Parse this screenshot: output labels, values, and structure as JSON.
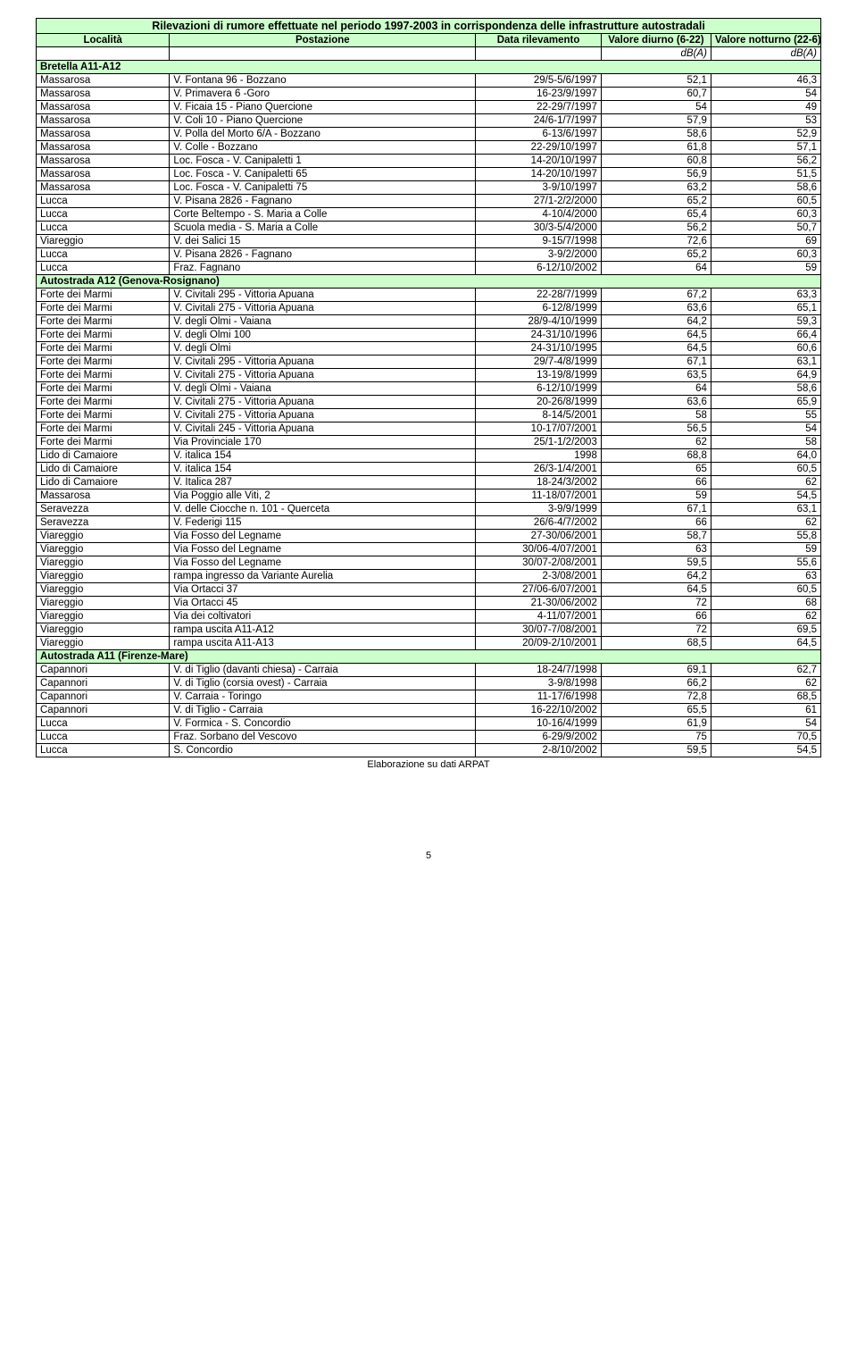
{
  "title": "Rilevazioni di rumore effettuate nel periodo 1997-2003 in corrispondenza delle infrastrutture autostradali",
  "headers": {
    "localita": "Località",
    "postazione": "Postazione",
    "data": "Data rilevamento",
    "diurno": "Valore diurno (6-22)",
    "notturno": "Valore notturno (22-6)"
  },
  "units": {
    "day": "dB(A)",
    "night": "dB(A)"
  },
  "footer": "Elaborazione su dati ARPAT",
  "page": "5",
  "colors": {
    "section_bg": "#ccffcc",
    "border": "#000000",
    "text": "#000000",
    "background": "#ffffff"
  },
  "sections": [
    {
      "name": "Bretella A11-A12",
      "rows": [
        [
          "Massarosa",
          "V. Fontana 96 - Bozzano",
          "29/5-5/6/1997",
          "52,1",
          "46,3"
        ],
        [
          "Massarosa",
          "V. Primavera 6 -Goro",
          "16-23/9/1997",
          "60,7",
          "54"
        ],
        [
          "Massarosa",
          "V. Ficaia 15 - Piano Quercione",
          "22-29/7/1997",
          "54",
          "49"
        ],
        [
          "Massarosa",
          "V. Coli 10 - Piano Quercione",
          "24/6-1/7/1997",
          "57,9",
          "53"
        ],
        [
          "Massarosa",
          "V. Polla del Morto 6/A - Bozzano",
          "6-13/6/1997",
          "58,6",
          "52,9"
        ],
        [
          "Massarosa",
          "V. Colle - Bozzano",
          "22-29/10/1997",
          "61,8",
          "57,1"
        ],
        [
          "Massarosa",
          "Loc. Fosca - V. Canipaletti 1",
          "14-20/10/1997",
          "60,8",
          "56,2"
        ],
        [
          "Massarosa",
          "Loc. Fosca - V. Canipaletti 65",
          "14-20/10/1997",
          "56,9",
          "51,5"
        ],
        [
          "Massarosa",
          "Loc. Fosca - V. Canipaletti 75",
          "3-9/10/1997",
          "63,2",
          "58,6"
        ],
        [
          "Lucca",
          "V. Pisana 2826 - Fagnano",
          "27/1-2/2/2000",
          "65,2",
          "60,5"
        ],
        [
          "Lucca",
          "Corte Beltempo - S. Maria a Colle",
          "4-10/4/2000",
          "65,4",
          "60,3"
        ],
        [
          "Lucca",
          "Scuola media - S. Maria a Colle",
          "30/3-5/4/2000",
          "56,2",
          "50,7"
        ],
        [
          "Viareggio",
          "V. dei Salici 15",
          "9-15/7/1998",
          "72,6",
          "69"
        ],
        [
          "Lucca",
          "V. Pisana 2826 - Fagnano",
          "3-9/2/2000",
          "65,2",
          "60,3"
        ],
        [
          "Lucca",
          "Fraz. Fagnano",
          "6-12/10/2002",
          "64",
          "59"
        ]
      ]
    },
    {
      "name": "Autostrada A12 (Genova-Rosignano)",
      "rows": [
        [
          "Forte dei Marmi",
          "V. Civitali 295 - Vittoria Apuana",
          "22-28/7/1999",
          "67,2",
          "63,3"
        ],
        [
          "Forte dei Marmi",
          "V. Civitali 275 - Vittoria Apuana",
          "6-12/8/1999",
          "63,6",
          "65,1"
        ],
        [
          "Forte dei Marmi",
          "V. degli Olmi - Vaiana",
          "28/9-4/10/1999",
          "64,2",
          "59,3"
        ],
        [
          "Forte dei Marmi",
          "V. degli Olmi 100",
          "24-31/10/1996",
          "64,5",
          "66,4"
        ],
        [
          "Forte dei Marmi",
          "V. degli Olmi",
          "24-31/10/1995",
          "64,5",
          "60,6"
        ],
        [
          "Forte dei Marmi",
          "V. Civitali 295 - Vittoria Apuana",
          "29/7-4/8/1999",
          "67,1",
          "63,1"
        ],
        [
          "Forte dei Marmi",
          "V. Civitali 275 - Vittoria Apuana",
          "13-19/8/1999",
          "63,5",
          "64,9"
        ],
        [
          "Forte dei Marmi",
          "V. degli Olmi - Vaiana",
          "6-12/10/1999",
          "64",
          "58,6"
        ],
        [
          "Forte dei Marmi",
          "V. Civitali 275 - Vittoria Apuana",
          "20-26/8/1999",
          "63,6",
          "65,9"
        ],
        [
          "Forte dei Marmi",
          "V. Civitali 275 - Vittoria Apuana",
          "8-14/5/2001",
          "58",
          "55"
        ],
        [
          "Forte dei Marmi",
          "V. Civitali 245 - Vittoria Apuana",
          "10-17/07/2001",
          "56,5",
          "54"
        ],
        [
          "Forte dei Marmi",
          "Via Provinciale 170",
          "25/1-1/2/2003",
          "62",
          "58"
        ],
        [
          "Lido di Camaiore",
          "V. italica 154",
          "1998",
          "68,8",
          "64,0"
        ],
        [
          "Lido di Camaiore",
          "V. italica 154",
          "26/3-1/4/2001",
          "65",
          "60,5"
        ],
        [
          "Lido di Camaiore",
          "V. Italica 287",
          "18-24/3/2002",
          "66",
          "62"
        ],
        [
          "Massarosa",
          "Via Poggio alle Viti, 2",
          "11-18/07/2001",
          "59",
          "54,5"
        ],
        [
          "Seravezza",
          "V. delle Ciocche n. 101 - Querceta",
          "3-9/9/1999",
          "67,1",
          "63,1"
        ],
        [
          "Seravezza",
          "V. Federigi 115",
          "26/6-4/7/2002",
          "66",
          "62"
        ],
        [
          "Viareggio",
          "Via Fosso del Legname",
          "27-30/06/2001",
          "58,7",
          "55,8"
        ],
        [
          "Viareggio",
          "Via Fosso del Legname",
          "30/06-4/07/2001",
          "63",
          "59"
        ],
        [
          "Viareggio",
          "Via Fosso del Legname",
          "30/07-2/08/2001",
          "59,5",
          "55,6"
        ],
        [
          "Viareggio",
          "rampa ingresso da Variante Aurelia",
          "2-3/08/2001",
          "64,2",
          "63"
        ],
        [
          "Viareggio",
          "Via Ortacci 37",
          "27/06-6/07/2001",
          "64,5",
          "60,5"
        ],
        [
          "Viareggio",
          "Via Ortacci 45",
          "21-30/06/2002",
          "72",
          "68"
        ],
        [
          "Viareggio",
          "Via dei coltivatori",
          "4-11/07/2001",
          "66",
          "62"
        ],
        [
          "Viareggio",
          "rampa uscita A11-A12",
          "30/07-7/08/2001",
          "72",
          "69,5"
        ],
        [
          "Viareggio",
          "rampa uscita A11-A13",
          "20/09-2/10/2001",
          "68,5",
          "64,5"
        ]
      ]
    },
    {
      "name": "Autostrada A11 (Firenze-Mare)",
      "rows": [
        [
          "Capannori",
          "V. di Tiglio (davanti chiesa) - Carraia",
          "18-24/7/1998",
          "69,1",
          "62,7"
        ],
        [
          "Capannori",
          "V. di Tiglio (corsia ovest) - Carraia",
          "3-9/8/1998",
          "66,2",
          "62"
        ],
        [
          "Capannori",
          "V. Carraia - Toringo",
          "11-17/6/1998",
          "72,8",
          "68,5"
        ],
        [
          "Capannori",
          "V. di Tiglio - Carraia",
          "16-22/10/2002",
          "65,5",
          "61"
        ],
        [
          "Lucca",
          "V. Formica - S. Concordio",
          "10-16/4/1999",
          "61,9",
          "54"
        ],
        [
          "Lucca",
          "Fraz. Sorbano del Vescovo",
          "6-29/9/2002",
          "75",
          "70,5"
        ],
        [
          "Lucca",
          "S. Concordio",
          "2-8/10/2002",
          "59,5",
          "54,5"
        ]
      ]
    }
  ]
}
